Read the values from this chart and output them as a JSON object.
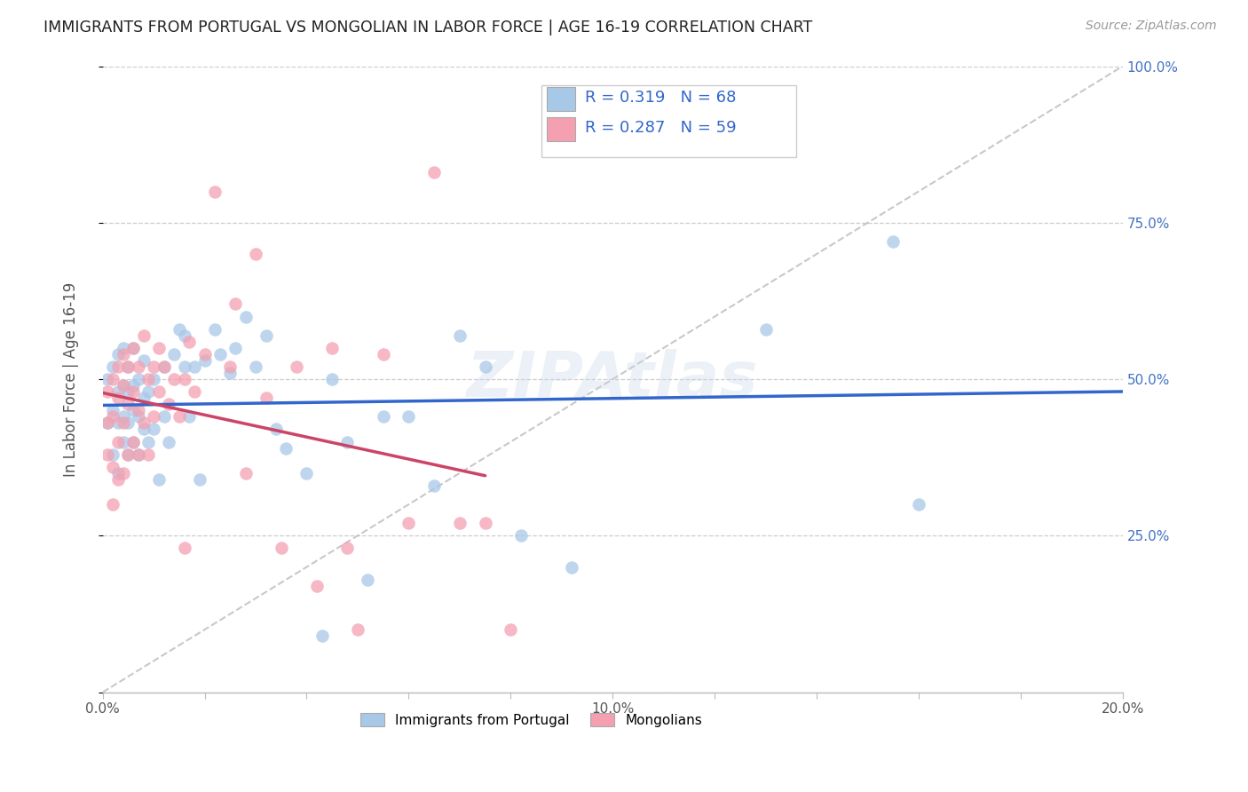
{
  "title": "IMMIGRANTS FROM PORTUGAL VS MONGOLIAN IN LABOR FORCE | AGE 16-19 CORRELATION CHART",
  "source": "Source: ZipAtlas.com",
  "ylabel": "In Labor Force | Age 16-19",
  "x_min": 0.0,
  "x_max": 0.2,
  "y_min": 0.0,
  "y_max": 1.0,
  "blue_R": 0.319,
  "blue_N": 68,
  "pink_R": 0.287,
  "pink_N": 59,
  "blue_color": "#a8c8e8",
  "pink_color": "#f4a0b0",
  "blue_line_color": "#3366cc",
  "pink_line_color": "#cc4466",
  "ref_line_color": "#bbbbbb",
  "legend_label_blue": "Immigrants from Portugal",
  "legend_label_pink": "Mongolians",
  "watermark": "ZIPAtlas",
  "blue_x": [
    0.001,
    0.001,
    0.002,
    0.002,
    0.002,
    0.003,
    0.003,
    0.003,
    0.003,
    0.004,
    0.004,
    0.004,
    0.004,
    0.005,
    0.005,
    0.005,
    0.005,
    0.006,
    0.006,
    0.006,
    0.006,
    0.007,
    0.007,
    0.007,
    0.008,
    0.008,
    0.008,
    0.009,
    0.009,
    0.01,
    0.01,
    0.011,
    0.012,
    0.012,
    0.013,
    0.014,
    0.015,
    0.016,
    0.016,
    0.017,
    0.018,
    0.019,
    0.02,
    0.022,
    0.023,
    0.025,
    0.026,
    0.028,
    0.03,
    0.032,
    0.034,
    0.036,
    0.04,
    0.043,
    0.045,
    0.048,
    0.052,
    0.055,
    0.06,
    0.065,
    0.07,
    0.075,
    0.082,
    0.092,
    0.095,
    0.13,
    0.155,
    0.16
  ],
  "blue_y": [
    0.43,
    0.5,
    0.38,
    0.45,
    0.52,
    0.35,
    0.43,
    0.48,
    0.54,
    0.4,
    0.44,
    0.49,
    0.55,
    0.38,
    0.43,
    0.48,
    0.52,
    0.4,
    0.45,
    0.49,
    0.55,
    0.38,
    0.44,
    0.5,
    0.42,
    0.47,
    0.53,
    0.4,
    0.48,
    0.42,
    0.5,
    0.34,
    0.44,
    0.52,
    0.4,
    0.54,
    0.58,
    0.52,
    0.57,
    0.44,
    0.52,
    0.34,
    0.53,
    0.58,
    0.54,
    0.51,
    0.55,
    0.6,
    0.52,
    0.57,
    0.42,
    0.39,
    0.35,
    0.09,
    0.5,
    0.4,
    0.18,
    0.44,
    0.44,
    0.33,
    0.57,
    0.52,
    0.25,
    0.2,
    0.88,
    0.58,
    0.72,
    0.3
  ],
  "pink_x": [
    0.001,
    0.001,
    0.001,
    0.002,
    0.002,
    0.002,
    0.002,
    0.003,
    0.003,
    0.003,
    0.003,
    0.004,
    0.004,
    0.004,
    0.004,
    0.005,
    0.005,
    0.005,
    0.006,
    0.006,
    0.006,
    0.007,
    0.007,
    0.007,
    0.008,
    0.008,
    0.009,
    0.009,
    0.01,
    0.01,
    0.011,
    0.011,
    0.012,
    0.013,
    0.014,
    0.015,
    0.016,
    0.016,
    0.017,
    0.018,
    0.02,
    0.022,
    0.025,
    0.026,
    0.028,
    0.03,
    0.032,
    0.035,
    0.038,
    0.042,
    0.045,
    0.048,
    0.05,
    0.055,
    0.06,
    0.065,
    0.07,
    0.075,
    0.08
  ],
  "pink_y": [
    0.38,
    0.43,
    0.48,
    0.3,
    0.36,
    0.44,
    0.5,
    0.34,
    0.4,
    0.47,
    0.52,
    0.35,
    0.43,
    0.49,
    0.54,
    0.38,
    0.46,
    0.52,
    0.4,
    0.48,
    0.55,
    0.38,
    0.45,
    0.52,
    0.43,
    0.57,
    0.38,
    0.5,
    0.44,
    0.52,
    0.48,
    0.55,
    0.52,
    0.46,
    0.5,
    0.44,
    0.23,
    0.5,
    0.56,
    0.48,
    0.54,
    0.8,
    0.52,
    0.62,
    0.35,
    0.7,
    0.47,
    0.23,
    0.52,
    0.17,
    0.55,
    0.23,
    0.1,
    0.54,
    0.27,
    0.83,
    0.27,
    0.27,
    0.1
  ]
}
